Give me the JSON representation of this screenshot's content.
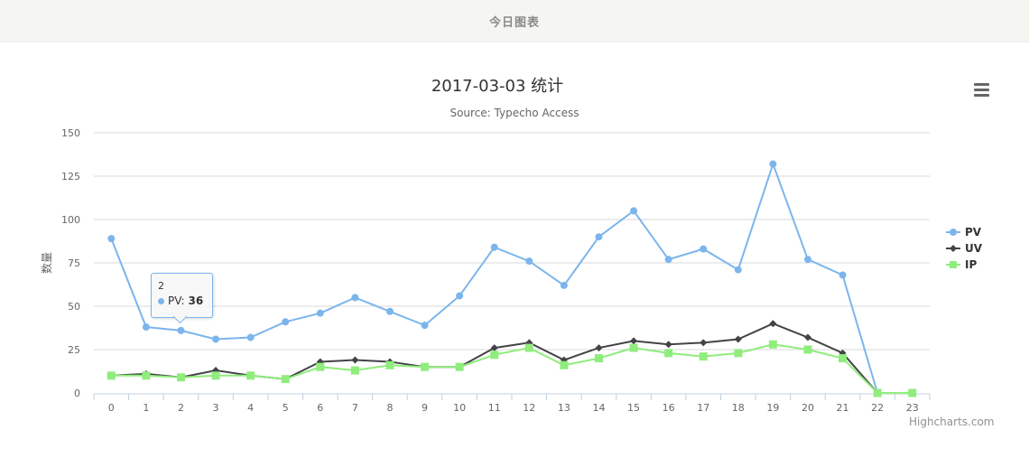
{
  "header": {
    "title": "今日图表"
  },
  "chart": {
    "title": "2017-03-03 统计",
    "subtitle": "Source: Typecho Access",
    "y_axis_title": "数量",
    "menu_icon": "hamburger-menu-icon",
    "credits": "Highcharts.com",
    "legend": [
      {
        "name": "PV",
        "color": "#7cb5ec",
        "symbol": "circle"
      },
      {
        "name": "UV",
        "color": "#434348",
        "symbol": "diamond"
      },
      {
        "name": "IP",
        "color": "#90ed7d",
        "symbol": "square"
      }
    ],
    "tooltip": {
      "x": "2",
      "series": "PV",
      "label": "PV:",
      "value": "36"
    }
  },
  "chart_data": {
    "type": "line",
    "title": "2017-03-03 统计",
    "subtitle": "Source: Typecho Access",
    "xlabel": "",
    "ylabel": "数量",
    "ylim": [
      0,
      150
    ],
    "yticks": [
      0,
      25,
      50,
      75,
      100,
      125,
      150
    ],
    "grid": true,
    "legend_position": "right",
    "categories": [
      "0",
      "1",
      "2",
      "3",
      "4",
      "5",
      "6",
      "7",
      "8",
      "9",
      "10",
      "11",
      "12",
      "13",
      "14",
      "15",
      "16",
      "17",
      "18",
      "19",
      "20",
      "21",
      "22",
      "23"
    ],
    "series": [
      {
        "name": "PV",
        "color": "#7cb5ec",
        "marker": "circle",
        "values": [
          89,
          38,
          36,
          31,
          32,
          41,
          46,
          55,
          47,
          39,
          56,
          84,
          76,
          62,
          90,
          105,
          77,
          83,
          71,
          132,
          77,
          68,
          0,
          null
        ]
      },
      {
        "name": "UV",
        "color": "#434348",
        "marker": "diamond",
        "values": [
          10,
          11,
          9,
          13,
          10,
          8,
          18,
          19,
          18,
          15,
          15,
          26,
          29,
          19,
          26,
          30,
          28,
          29,
          31,
          40,
          32,
          23,
          0,
          null
        ]
      },
      {
        "name": "IP",
        "color": "#90ed7d",
        "marker": "square",
        "values": [
          10,
          10,
          9,
          10,
          10,
          8,
          15,
          13,
          16,
          15,
          15,
          22,
          26,
          16,
          20,
          26,
          23,
          21,
          23,
          28,
          25,
          20,
          0,
          0
        ]
      }
    ]
  }
}
